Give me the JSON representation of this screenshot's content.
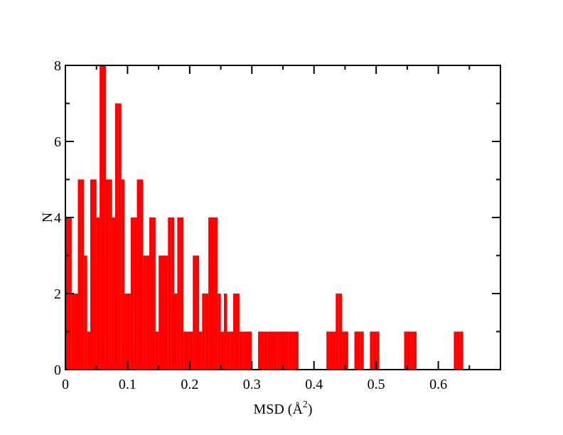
{
  "chart_data": {
    "type": "bar",
    "title": "",
    "xlabel": "MSD (Å",
    "xlabel_sup": "2",
    "xlabel_close": ")",
    "ylabel": "N",
    "xlim": [
      0,
      0.7
    ],
    "ylim": [
      0,
      8
    ],
    "x_ticks": [
      0,
      0.1,
      0.2,
      0.3,
      0.4,
      0.5,
      0.6
    ],
    "x_tick_labels": [
      "0",
      "0.1",
      "0.2",
      "0.3",
      "0.4",
      "0.5",
      "0.6"
    ],
    "y_ticks": [
      0,
      2,
      4,
      6,
      8
    ],
    "y_tick_labels": [
      "0",
      "2",
      "4",
      "6",
      "8"
    ],
    "bin_width": 0.0051,
    "bar_color": "#ff0000",
    "grid": false,
    "bins": [
      {
        "x": 0.0,
        "count": 4
      },
      {
        "x": 0.005,
        "count": 4
      },
      {
        "x": 0.01,
        "count": 2
      },
      {
        "x": 0.015,
        "count": 2
      },
      {
        "x": 0.02,
        "count": 5
      },
      {
        "x": 0.025,
        "count": 5
      },
      {
        "x": 0.03,
        "count": 3
      },
      {
        "x": 0.035,
        "count": 1
      },
      {
        "x": 0.04,
        "count": 5
      },
      {
        "x": 0.045,
        "count": 5
      },
      {
        "x": 0.05,
        "count": 4
      },
      {
        "x": 0.055,
        "count": 8
      },
      {
        "x": 0.06,
        "count": 8
      },
      {
        "x": 0.065,
        "count": 5
      },
      {
        "x": 0.07,
        "count": 5
      },
      {
        "x": 0.075,
        "count": 4
      },
      {
        "x": 0.08,
        "count": 7
      },
      {
        "x": 0.085,
        "count": 7
      },
      {
        "x": 0.09,
        "count": 5
      },
      {
        "x": 0.095,
        "count": 2
      },
      {
        "x": 0.1,
        "count": 2
      },
      {
        "x": 0.105,
        "count": 4
      },
      {
        "x": 0.11,
        "count": 4
      },
      {
        "x": 0.115,
        "count": 5
      },
      {
        "x": 0.12,
        "count": 5
      },
      {
        "x": 0.125,
        "count": 3
      },
      {
        "x": 0.13,
        "count": 3
      },
      {
        "x": 0.135,
        "count": 4
      },
      {
        "x": 0.14,
        "count": 4
      },
      {
        "x": 0.145,
        "count": 1
      },
      {
        "x": 0.15,
        "count": 3
      },
      {
        "x": 0.155,
        "count": 3
      },
      {
        "x": 0.16,
        "count": 3
      },
      {
        "x": 0.165,
        "count": 4
      },
      {
        "x": 0.17,
        "count": 4
      },
      {
        "x": 0.175,
        "count": 2
      },
      {
        "x": 0.18,
        "count": 4
      },
      {
        "x": 0.185,
        "count": 4
      },
      {
        "x": 0.19,
        "count": 1
      },
      {
        "x": 0.195,
        "count": 1
      },
      {
        "x": 0.2,
        "count": 1
      },
      {
        "x": 0.205,
        "count": 3
      },
      {
        "x": 0.21,
        "count": 3
      },
      {
        "x": 0.215,
        "count": 1
      },
      {
        "x": 0.22,
        "count": 2
      },
      {
        "x": 0.225,
        "count": 2
      },
      {
        "x": 0.23,
        "count": 4
      },
      {
        "x": 0.235,
        "count": 4
      },
      {
        "x": 0.24,
        "count": 4
      },
      {
        "x": 0.245,
        "count": 2
      },
      {
        "x": 0.25,
        "count": 1
      },
      {
        "x": 0.255,
        "count": 2
      },
      {
        "x": 0.26,
        "count": 1
      },
      {
        "x": 0.265,
        "count": 1
      },
      {
        "x": 0.27,
        "count": 2
      },
      {
        "x": 0.275,
        "count": 2
      },
      {
        "x": 0.28,
        "count": 1
      },
      {
        "x": 0.285,
        "count": 1
      },
      {
        "x": 0.29,
        "count": 1
      },
      {
        "x": 0.295,
        "count": 1
      },
      {
        "x": 0.31,
        "count": 1
      },
      {
        "x": 0.315,
        "count": 1
      },
      {
        "x": 0.32,
        "count": 1
      },
      {
        "x": 0.325,
        "count": 1
      },
      {
        "x": 0.33,
        "count": 1
      },
      {
        "x": 0.335,
        "count": 1
      },
      {
        "x": 0.34,
        "count": 1
      },
      {
        "x": 0.345,
        "count": 1
      },
      {
        "x": 0.35,
        "count": 1
      },
      {
        "x": 0.355,
        "count": 1
      },
      {
        "x": 0.36,
        "count": 1
      },
      {
        "x": 0.365,
        "count": 1
      },
      {
        "x": 0.37,
        "count": 1
      },
      {
        "x": 0.42,
        "count": 1
      },
      {
        "x": 0.425,
        "count": 1
      },
      {
        "x": 0.43,
        "count": 1
      },
      {
        "x": 0.435,
        "count": 2
      },
      {
        "x": 0.44,
        "count": 2
      },
      {
        "x": 0.445,
        "count": 1
      },
      {
        "x": 0.45,
        "count": 1
      },
      {
        "x": 0.465,
        "count": 1
      },
      {
        "x": 0.47,
        "count": 1
      },
      {
        "x": 0.475,
        "count": 1
      },
      {
        "x": 0.49,
        "count": 1
      },
      {
        "x": 0.495,
        "count": 1
      },
      {
        "x": 0.5,
        "count": 1
      },
      {
        "x": 0.545,
        "count": 1
      },
      {
        "x": 0.55,
        "count": 1
      },
      {
        "x": 0.555,
        "count": 1
      },
      {
        "x": 0.56,
        "count": 1
      },
      {
        "x": 0.625,
        "count": 1
      },
      {
        "x": 0.63,
        "count": 1
      },
      {
        "x": 0.635,
        "count": 1
      }
    ]
  }
}
